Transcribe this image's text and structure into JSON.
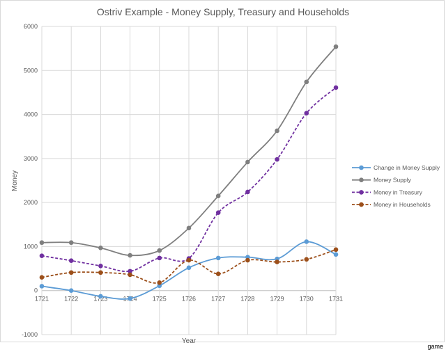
{
  "chart_data": {
    "type": "line",
    "title": "Ostriv Example -  Money Supply, Treasury and Households",
    "xlabel": "Year",
    "ylabel": "Money",
    "ylim": [
      -1000,
      6000
    ],
    "yticks": [
      -1000,
      0,
      1000,
      2000,
      3000,
      4000,
      5000,
      6000
    ],
    "grid": true,
    "legend_position": "right",
    "x": [
      1721,
      1722,
      1723,
      1724,
      1725,
      1726,
      1727,
      1728,
      1729,
      1730,
      1731
    ],
    "series": [
      {
        "name": "Change in Money Supply",
        "color": "#5b9bd5",
        "dash": false,
        "values": [
          100,
          0,
          -130,
          -180,
          110,
          520,
          740,
          760,
          720,
          1110,
          820
        ]
      },
      {
        "name": "Money Supply",
        "color": "#7f7f7f",
        "dash": false,
        "values": [
          1090,
          1090,
          970,
          800,
          910,
          1420,
          2150,
          2920,
          3630,
          4740,
          5540
        ]
      },
      {
        "name": "Money in Treasury",
        "color": "#7030a0",
        "dash": true,
        "values": [
          790,
          680,
          560,
          440,
          740,
          730,
          1770,
          2240,
          2980,
          4030,
          4610
        ]
      },
      {
        "name": "Money in Households",
        "color": "#9c4f1a",
        "dash": true,
        "values": [
          300,
          410,
          410,
          360,
          180,
          690,
          380,
          690,
          650,
          710,
          930
        ]
      }
    ]
  },
  "watermark": "game"
}
